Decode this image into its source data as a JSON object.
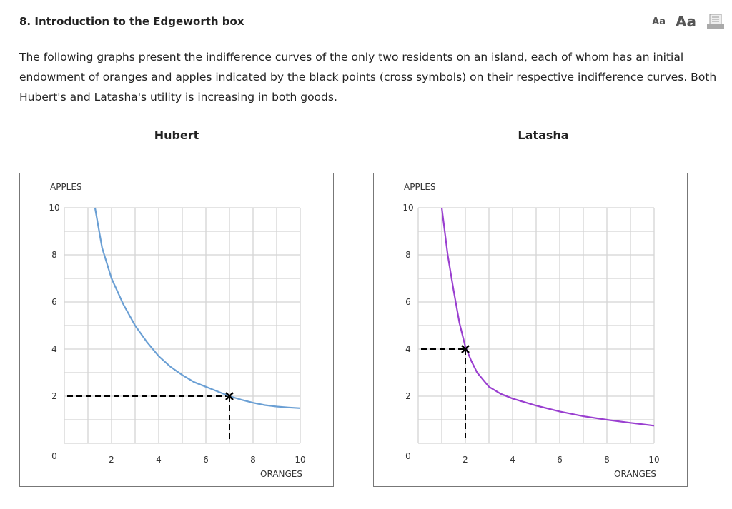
{
  "header": {
    "title": "8. Introduction to the Edgeworth box",
    "font_small": "Aa",
    "font_large": "Aa",
    "print_icon": "printer-icon"
  },
  "intro": "The following graphs present the indifference curves of the only two residents on an island, each of whom has an initial endowment of oranges and apples indicated by the black points (cross symbols) on their respective indifference curves. Both Hubert's and Latasha's utility is increasing in both goods.",
  "chart_data": [
    {
      "type": "line",
      "title": "Hubert",
      "xlabel": "ORANGES",
      "ylabel": "APPLES",
      "xlim": [
        0,
        10
      ],
      "ylim": [
        0,
        10
      ],
      "grid": true,
      "xticks": [
        "0",
        "2",
        "4",
        "6",
        "8",
        "10"
      ],
      "yticks": [
        "0",
        "2",
        "4",
        "6",
        "8",
        "10"
      ],
      "color": "#6a9fd4",
      "series": [
        {
          "x": [
            1.3,
            1.6,
            2,
            2.5,
            3,
            3.5,
            4,
            4.5,
            5,
            5.5,
            6,
            6.5,
            7,
            7.5,
            8,
            8.5,
            9,
            9.5,
            10
          ],
          "y": [
            10,
            8.3,
            7,
            5.9,
            5,
            4.3,
            3.7,
            3.25,
            2.9,
            2.6,
            2.4,
            2.2,
            2.0,
            1.85,
            1.72,
            1.62,
            1.56,
            1.52,
            1.49
          ]
        }
      ],
      "endowment": {
        "x": 7,
        "y": 2
      }
    },
    {
      "type": "line",
      "title": "Latasha",
      "xlabel": "ORANGES",
      "ylabel": "APPLES",
      "xlim": [
        0,
        10
      ],
      "ylim": [
        0,
        10
      ],
      "grid": true,
      "xticks": [
        "0",
        "2",
        "4",
        "6",
        "8",
        "10"
      ],
      "yticks": [
        "0",
        "2",
        "4",
        "6",
        "8",
        "10"
      ],
      "color": "#9a3fd0",
      "series": [
        {
          "x": [
            1,
            1.25,
            1.5,
            1.75,
            2,
            2.25,
            2.5,
            3,
            3.5,
            4,
            5,
            6,
            7,
            8,
            9,
            10
          ],
          "y": [
            10,
            8.0,
            6.5,
            5.1,
            4.1,
            3.5,
            3.0,
            2.4,
            2.1,
            1.9,
            1.6,
            1.35,
            1.15,
            1.0,
            0.87,
            0.75
          ]
        }
      ],
      "endowment": {
        "x": 2,
        "y": 4
      }
    }
  ]
}
